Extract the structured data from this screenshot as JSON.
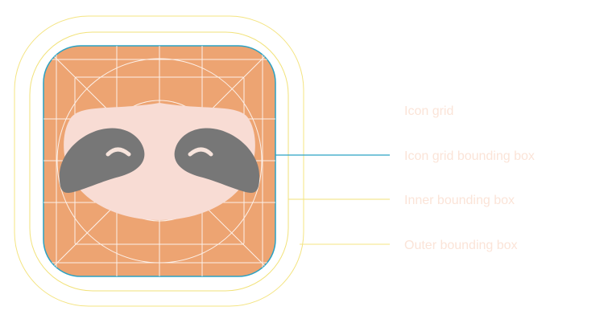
{
  "labels": {
    "icon_grid": "Icon grid",
    "icon_grid_bounding_box": "Icon grid bounding box",
    "inner_bounding_box": "Inner bounding box",
    "outer_bounding_box": "Outer bounding box"
  },
  "colors": {
    "background": "#ffffff",
    "icon_fill": "#eda472",
    "grid_line": "#ffffff",
    "icon_grid_bounding_box": "#2aa2c4",
    "inner_bounding_box": "#f2e27a",
    "outer_bounding_box": "#f4e482",
    "label_text": "#fbe4d8",
    "face": "#f8dcd4",
    "eye_patch": "#777777",
    "eye_line": "#f7e4dc"
  },
  "icon_subject": "sloth-face"
}
